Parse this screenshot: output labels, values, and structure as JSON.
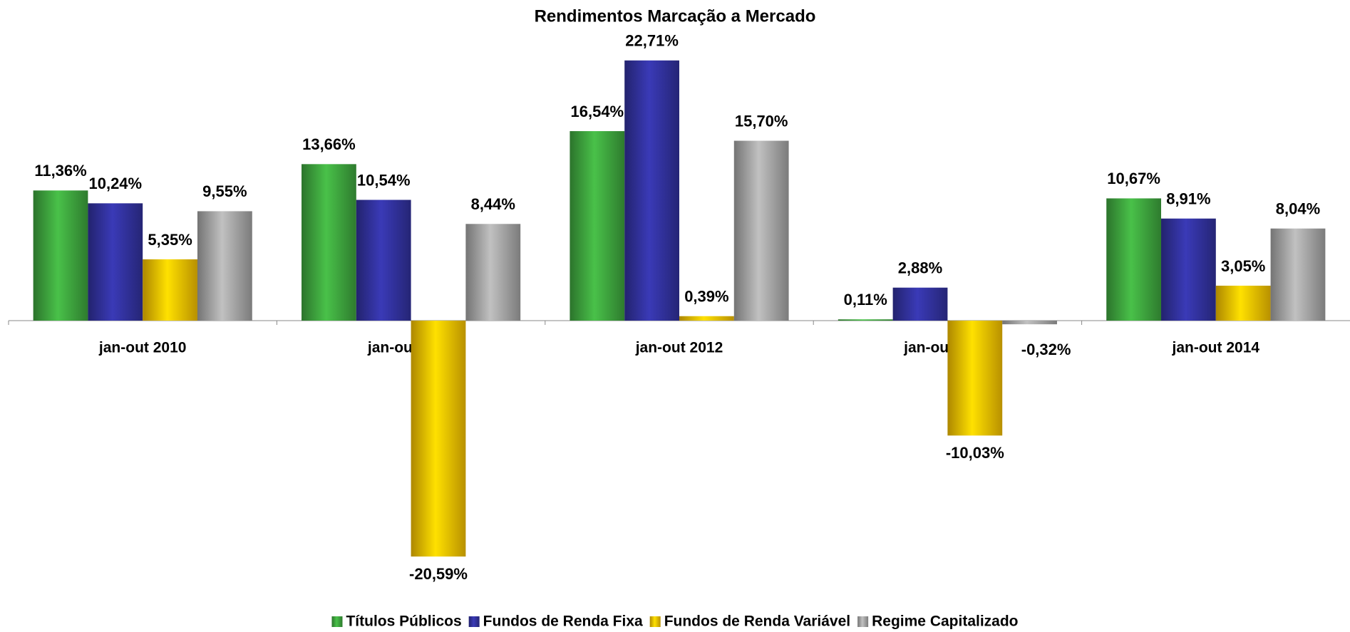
{
  "chart_data": {
    "type": "bar",
    "title": "Rendimentos Marcação a Mercado",
    "categories": [
      "jan-out 2010",
      "jan-out 2011",
      "jan-out 2012",
      "jan-out 2013",
      "jan-out 2014"
    ],
    "series": [
      {
        "name": "Títulos Públicos",
        "color": "#3a9a3a",
        "values": [
          11.36,
          13.66,
          16.54,
          0.11,
          10.67
        ],
        "value_labels": [
          "11,36%",
          "13,66%",
          "16,54%",
          "0,11%",
          "10,67%"
        ]
      },
      {
        "name": "Fundos de Renda Fixa",
        "color": "#2e2e92",
        "values": [
          10.24,
          10.54,
          22.71,
          2.88,
          8.91
        ],
        "value_labels": [
          "10,24%",
          "10,54%",
          "22,71%",
          "2,88%",
          "8,91%"
        ]
      },
      {
        "name": "Fundos de Renda Variável",
        "color": "#e6b400",
        "values": [
          5.35,
          -20.59,
          0.39,
          -10.03,
          3.05
        ],
        "value_labels": [
          "5,35%",
          "-20,59%",
          "0,39%",
          "-10,03%",
          "3,05%"
        ]
      },
      {
        "name": "Regime Capitalizado",
        "color": "#9a9a9a",
        "values": [
          9.55,
          8.44,
          15.7,
          -0.32,
          8.04
        ],
        "value_labels": [
          "9,55%",
          "8,44%",
          "15,70%",
          "-0,32%",
          "8,04%"
        ]
      }
    ],
    "ylim": [
      -25,
      25
    ]
  }
}
